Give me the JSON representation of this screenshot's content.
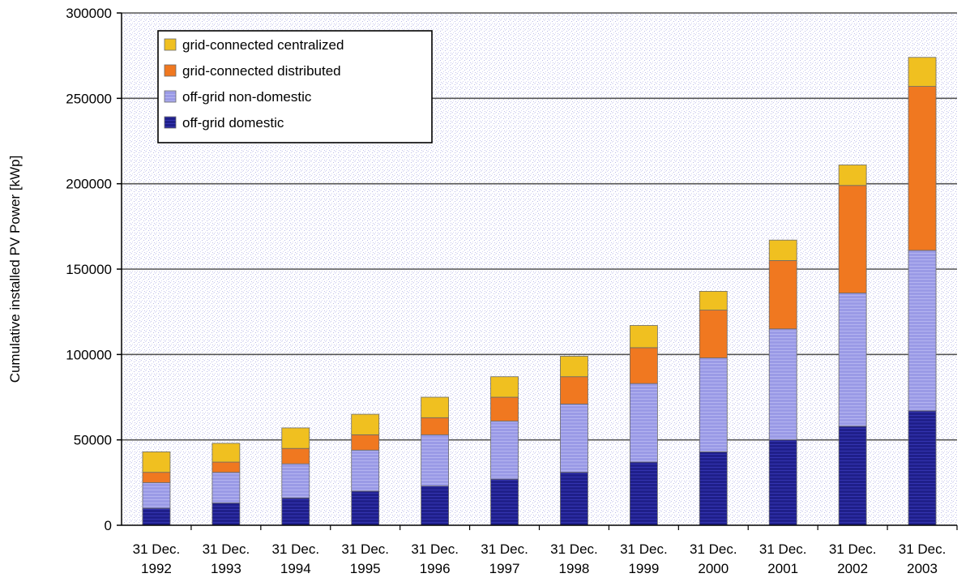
{
  "chart_data": {
    "type": "bar",
    "stacked": true,
    "ylabel": "Cumulative installed PV Power [kWp]",
    "xlabel": "",
    "ylim": [
      0,
      300000
    ],
    "yticks": [
      "0",
      "50000",
      "100000",
      "150000",
      "200000",
      "250000",
      "300000"
    ],
    "categories": [
      [
        "31 Dec.",
        "1992"
      ],
      [
        "31 Dec.",
        "1993"
      ],
      [
        "31 Dec.",
        "1994"
      ],
      [
        "31 Dec.",
        "1995"
      ],
      [
        "31 Dec.",
        "1996"
      ],
      [
        "31 Dec.",
        "1997"
      ],
      [
        "31 Dec.",
        "1998"
      ],
      [
        "31 Dec.",
        "1999"
      ],
      [
        "31 Dec.",
        "2000"
      ],
      [
        "31 Dec.",
        "2001"
      ],
      [
        "31 Dec.",
        "2002"
      ],
      [
        "31 Dec.",
        "2003"
      ]
    ],
    "series": [
      {
        "name": "off-grid domestic",
        "color": "#1f1f8a",
        "values": [
          10000,
          13000,
          16000,
          20000,
          23000,
          27000,
          31000,
          37000,
          43000,
          50000,
          58000,
          67000
        ]
      },
      {
        "name": "off-grid non-domestic",
        "color": "#9a9ae6",
        "values": [
          15000,
          18000,
          20000,
          24000,
          30000,
          34000,
          40000,
          46000,
          55000,
          65000,
          78000,
          94000
        ]
      },
      {
        "name": "grid-connected distributed",
        "color": "#f07820",
        "values": [
          6000,
          6000,
          9000,
          9000,
          10000,
          14000,
          16000,
          21000,
          28000,
          40000,
          63000,
          96000
        ]
      },
      {
        "name": "grid-connected centralized",
        "color": "#f0c020",
        "values": [
          12000,
          11000,
          12000,
          12000,
          12000,
          12000,
          12000,
          13000,
          11000,
          12000,
          12000,
          17000
        ]
      }
    ],
    "legend_order": [
      "grid-connected centralized",
      "grid-connected distributed",
      "off-grid non-domestic",
      "off-grid domestic"
    ],
    "legend_position": "top-left",
    "grid": true
  }
}
